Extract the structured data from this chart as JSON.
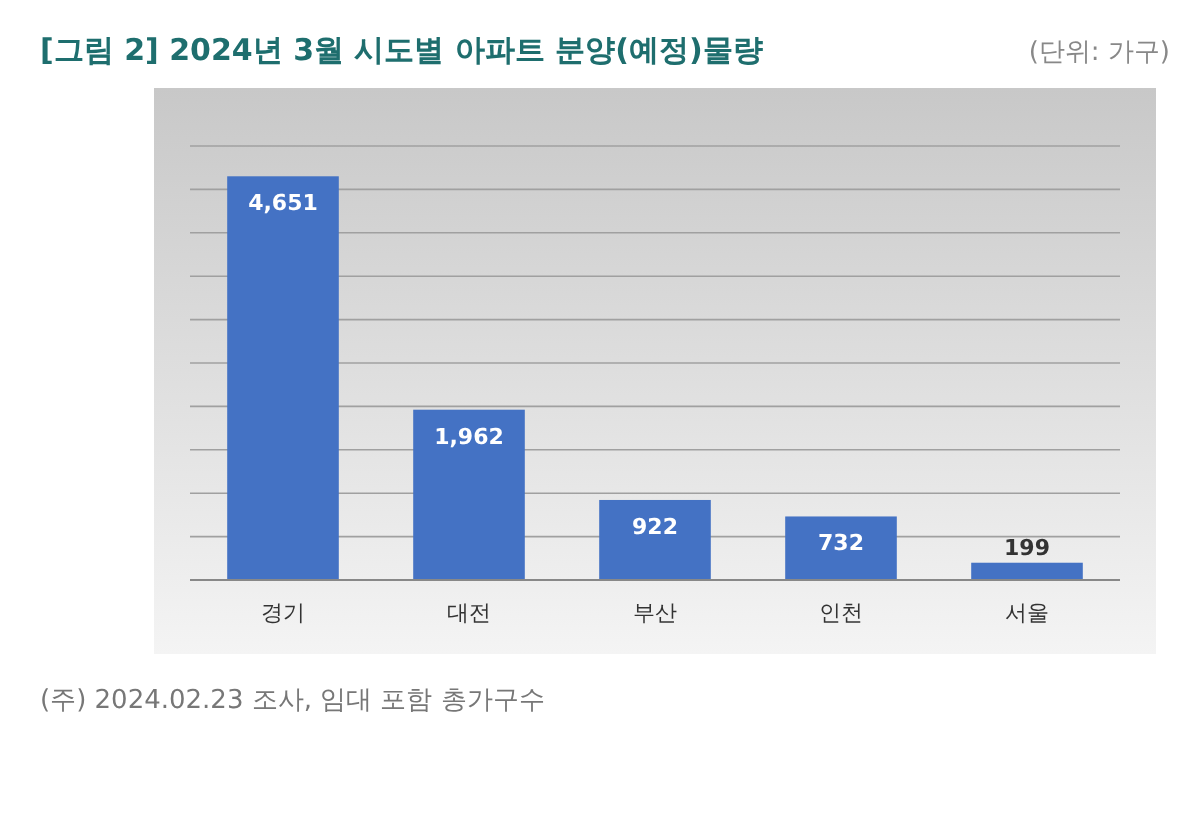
{
  "chart_data": {
    "type": "bar",
    "title": "[그림 2] 2024년 3월 시도별 아파트 분양(예정)물량",
    "subtitle": "(단위: 가구)",
    "categories": [
      "경기",
      "대전",
      "부산",
      "인천",
      "서울"
    ],
    "values": [
      4651,
      1962,
      922,
      732,
      199
    ],
    "color": "#4472c4",
    "value_labels": [
      "4,651",
      "1,962",
      "922",
      "732",
      "199"
    ],
    "ylim": [
      0,
      5000
    ],
    "yticks": [
      {
        "value": 0,
        "label": null
      },
      {
        "value": 500,
        "label": null
      },
      {
        "value": 1000,
        "label": null
      },
      {
        "value": 1500,
        "label": null
      },
      {
        "value": 2000,
        "label": null
      },
      {
        "value": 2500,
        "label": null
      },
      {
        "value": 3000,
        "label": null
      },
      {
        "value": 3500,
        "label": null
      },
      {
        "value": 4000,
        "label": null
      },
      {
        "value": 4500,
        "label": null
      },
      {
        "value": 5000,
        "label": null
      }
    ],
    "grid": "y",
    "tick_labels": "x",
    "annotations": [
      "(주) 2024.02.23 조사, 임대 포함 총가구수"
    ]
  }
}
